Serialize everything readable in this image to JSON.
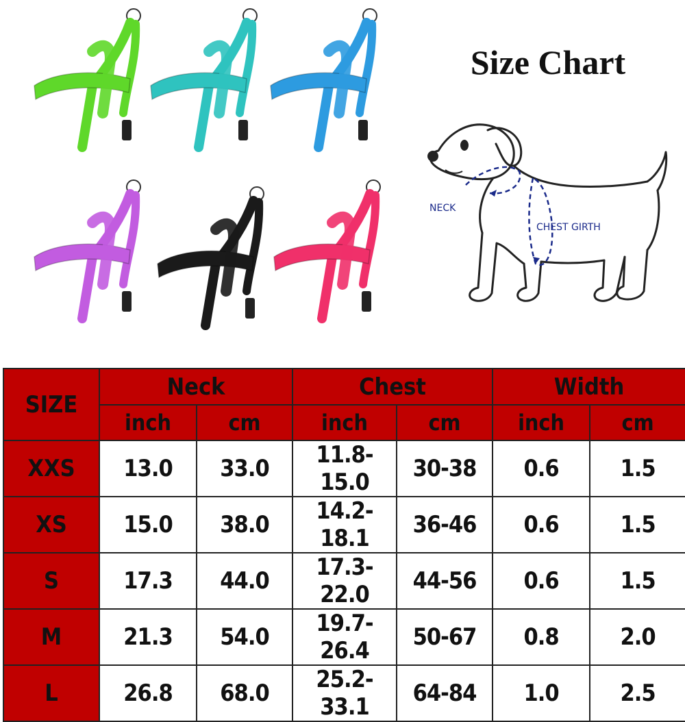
{
  "title": "Size Chart",
  "dog_diagram": {
    "neck_label": "NECK",
    "chest_label": "CHEST GIRTH"
  },
  "harnesses": [
    {
      "name": "green-harness",
      "color": "#5fd82a"
    },
    {
      "name": "teal-harness",
      "color": "#2fc3bf"
    },
    {
      "name": "blue-harness",
      "color": "#2d9be0"
    },
    {
      "name": "purple-harness",
      "color": "#c25ce0"
    },
    {
      "name": "black-harness",
      "color": "#1a1a1a"
    },
    {
      "name": "pink-harness",
      "color": "#f0306a"
    }
  ],
  "table": {
    "size_header": "SIZE",
    "groups": [
      "Neck",
      "Chest",
      "Width"
    ],
    "units": [
      "inch",
      "cm",
      "inch",
      "cm",
      "inch",
      "cm"
    ],
    "rows": [
      {
        "size": "XXS",
        "values": [
          "13.0",
          "33.0",
          "11.8-15.0",
          "30-38",
          "0.6",
          "1.5"
        ]
      },
      {
        "size": "XS",
        "values": [
          "15.0",
          "38.0",
          "14.2-18.1",
          "36-46",
          "0.6",
          "1.5"
        ]
      },
      {
        "size": "S",
        "values": [
          "17.3",
          "44.0",
          "17.3-22.0",
          "44-56",
          "0.6",
          "1.5"
        ]
      },
      {
        "size": "M",
        "values": [
          "21.3",
          "54.0",
          "19.7-26.4",
          "50-67",
          "0.8",
          "2.0"
        ]
      },
      {
        "size": "L",
        "values": [
          "26.8",
          "68.0",
          "25.2-33.1",
          "64-84",
          "1.0",
          "2.5"
        ]
      }
    ]
  }
}
